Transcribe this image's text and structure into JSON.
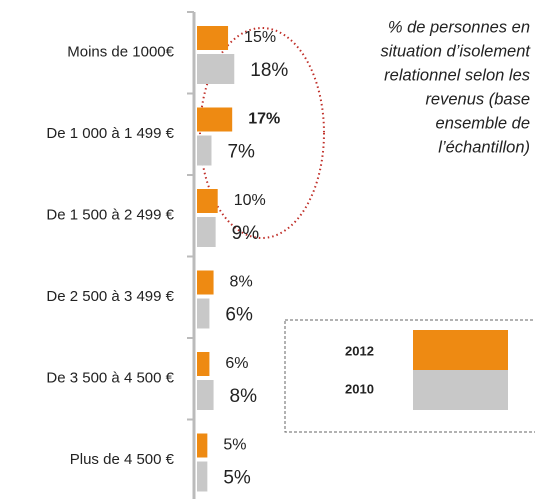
{
  "chart_data": {
    "type": "hbar",
    "title": [
      "% de personnes en",
      "situation d’isolement",
      "relationnel selon les",
      "revenus (base",
      "ensemble de",
      "l’échantillon)"
    ],
    "categories": [
      "Moins de  1000€",
      "De 1 000 à 1 499 €",
      "De 1 500 à 2 499 €",
      "De 2 500 à 3 499 €",
      "De 3 500 à 4 500 €",
      "Plus de 4 500 €"
    ],
    "series": [
      {
        "name": "2012",
        "color": "#ee8a12",
        "values": [
          15,
          17,
          10,
          8,
          6,
          5
        ],
        "value_labels": [
          "15%",
          "17%",
          "10%",
          "8%",
          "6%",
          "5%"
        ]
      },
      {
        "name": "2010",
        "color": "#c8c8c8",
        "values": [
          18,
          7,
          9,
          6,
          8,
          5
        ],
        "value_labels": [
          "18%",
          "7%",
          "9%",
          "6%",
          "8%",
          "5%"
        ]
      }
    ],
    "xlim": [
      0,
      100
    ]
  }
}
